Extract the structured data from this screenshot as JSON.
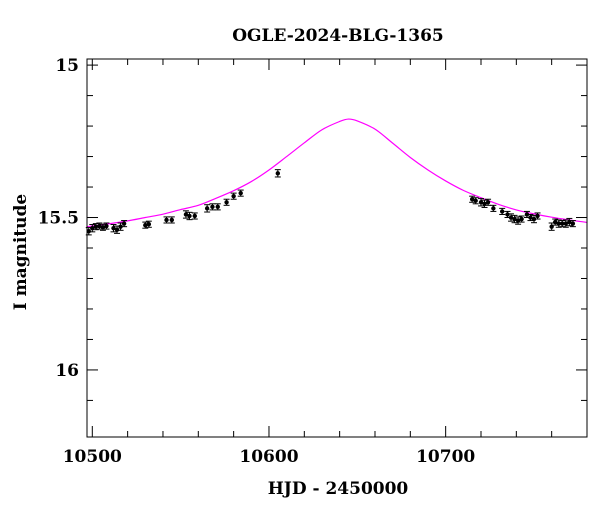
{
  "chart_data": {
    "type": "scatter",
    "title": "OGLE-2024-BLG-1365",
    "xlabel": "HJD - 2450000",
    "ylabel": "I magnitude",
    "xlim": [
      10497,
      10780
    ],
    "ylim": [
      16.22,
      14.98
    ],
    "y_inverted": true,
    "grid": false,
    "x_ticks": [
      10500,
      10600,
      10700
    ],
    "x_tick_labels": [
      "10500",
      "10600",
      "10700"
    ],
    "y_ticks": [
      15,
      15.5,
      16
    ],
    "y_tick_labels": [
      "15",
      "15.5",
      "16"
    ],
    "model": {
      "name": "",
      "color": "#ff00ff",
      "x": [
        10497,
        10510,
        10520,
        10530,
        10540,
        10550,
        10560,
        10570,
        10580,
        10590,
        10600,
        10610,
        10620,
        10630,
        10640,
        10645,
        10650,
        10660,
        10670,
        10680,
        10690,
        10700,
        10710,
        10720,
        10730,
        10740,
        10750,
        10760,
        10770,
        10780
      ],
      "y": [
        15.53,
        15.52,
        15.511,
        15.5,
        15.489,
        15.474,
        15.46,
        15.437,
        15.412,
        15.382,
        15.344,
        15.3,
        15.255,
        15.212,
        15.185,
        15.177,
        15.183,
        15.21,
        15.256,
        15.303,
        15.344,
        15.38,
        15.411,
        15.435,
        15.457,
        15.475,
        15.488,
        15.499,
        15.508,
        15.516
      ]
    },
    "series": [
      {
        "name": "",
        "color": "#000000",
        "x": [
          10498,
          10500,
          10502,
          10504,
          10506,
          10508,
          10512,
          10514,
          10516,
          10518,
          10530,
          10532,
          10542,
          10545,
          10553,
          10555,
          10558,
          10565,
          10568,
          10571,
          10576,
          10580,
          10584,
          10605,
          10715,
          10717,
          10720,
          10722,
          10724,
          10727,
          10732,
          10735,
          10737,
          10739,
          10741,
          10743,
          10746,
          10748,
          10750,
          10752,
          10760,
          10762,
          10764,
          10766,
          10768,
          10770,
          10772
        ],
        "y": [
          15.545,
          15.535,
          15.53,
          15.528,
          15.532,
          15.528,
          15.535,
          15.54,
          15.53,
          15.52,
          15.525,
          15.522,
          15.508,
          15.508,
          15.49,
          15.495,
          15.495,
          15.47,
          15.465,
          15.465,
          15.45,
          15.43,
          15.42,
          15.355,
          15.44,
          15.445,
          15.45,
          15.455,
          15.45,
          15.47,
          15.48,
          15.49,
          15.5,
          15.505,
          15.51,
          15.505,
          15.49,
          15.5,
          15.505,
          15.495,
          15.53,
          15.515,
          15.52,
          15.52,
          15.52,
          15.515,
          15.52
        ],
        "err": [
          0.012,
          0.012,
          0.01,
          0.01,
          0.01,
          0.01,
          0.012,
          0.012,
          0.012,
          0.01,
          0.01,
          0.01,
          0.01,
          0.01,
          0.012,
          0.012,
          0.01,
          0.012,
          0.01,
          0.01,
          0.01,
          0.01,
          0.01,
          0.012,
          0.01,
          0.01,
          0.012,
          0.012,
          0.01,
          0.01,
          0.01,
          0.01,
          0.012,
          0.012,
          0.012,
          0.01,
          0.01,
          0.01,
          0.012,
          0.01,
          0.012,
          0.01,
          0.012,
          0.01,
          0.012,
          0.012,
          0.01
        ]
      }
    ]
  }
}
